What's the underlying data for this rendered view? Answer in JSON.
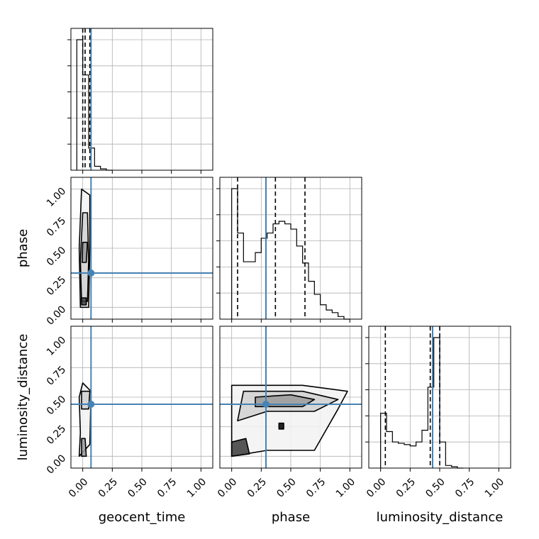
{
  "chart_data": {
    "type": "corner",
    "parameters": [
      "geocent_time",
      "phase",
      "luminosity_distance"
    ],
    "xlabels": [
      "geocent_time",
      "phase",
      "luminosity_distance"
    ],
    "ylabels": [
      "phase",
      "luminosity_distance"
    ],
    "tick_labels": [
      "0.00",
      "0.25",
      "0.50",
      "0.75",
      "1.00"
    ],
    "xlim": [
      -0.1,
      1.1
    ],
    "ylim": [
      -0.1,
      1.1
    ],
    "truths": {
      "geocent_time": 0.07,
      "phase": 0.29,
      "luminosity_distance": 0.44
    },
    "truth_color": "#4682b4",
    "quantiles": {
      "geocent_time": [
        0.0,
        0.02,
        0.06
      ],
      "phase": [
        0.05,
        0.37,
        0.62
      ],
      "luminosity_distance": [
        0.04,
        0.42,
        0.5
      ]
    },
    "histograms": {
      "geocent_time": {
        "bin_edges": [
          -0.05,
          0.0,
          0.05,
          0.1,
          0.15,
          0.2,
          0.25
        ],
        "counts": [
          1.0,
          0.73,
          0.17,
          0.03,
          0.01,
          0.0
        ]
      },
      "phase": {
        "bin_edges": [
          0.0,
          0.05,
          0.1,
          0.15,
          0.2,
          0.25,
          0.3,
          0.35,
          0.4,
          0.45,
          0.5,
          0.55,
          0.6,
          0.65,
          0.7,
          0.75,
          0.8,
          0.85,
          0.9,
          0.95,
          1.0
        ],
        "counts": [
          1.0,
          0.66,
          0.44,
          0.44,
          0.51,
          0.62,
          0.66,
          0.73,
          0.75,
          0.73,
          0.69,
          0.56,
          0.43,
          0.29,
          0.19,
          0.11,
          0.07,
          0.05,
          0.02,
          0.0
        ]
      },
      "luminosity_distance": {
        "bin_edges": [
          0.0,
          0.05,
          0.1,
          0.15,
          0.2,
          0.25,
          0.3,
          0.35,
          0.4,
          0.45,
          0.5,
          0.55,
          0.6,
          0.65,
          0.7
        ],
        "counts": [
          0.42,
          0.28,
          0.2,
          0.19,
          0.18,
          0.17,
          0.2,
          0.29,
          0.62,
          1.0,
          0.2,
          0.02,
          0.01,
          0.0
        ]
      }
    },
    "contours_2d": [
      {
        "x": "geocent_time",
        "y": "phase",
        "levels": [
          [
            [
              -0.02,
              0.0
            ],
            [
              0.05,
              0.0
            ],
            [
              0.06,
              0.5
            ],
            [
              0.06,
              0.95
            ],
            [
              -0.01,
              1.0
            ],
            [
              -0.03,
              0.5
            ]
          ],
          [
            [
              -0.01,
              0.05
            ],
            [
              0.04,
              0.05
            ],
            [
              0.05,
              0.4
            ],
            [
              0.04,
              0.8
            ],
            [
              0.0,
              0.8
            ],
            [
              -0.02,
              0.4
            ]
          ],
          [
            [
              -0.005,
              0.38
            ],
            [
              0.03,
              0.38
            ],
            [
              0.04,
              0.55
            ],
            [
              0.0,
              0.55
            ]
          ],
          [
            [
              -0.01,
              0.02
            ],
            [
              0.03,
              0.02
            ],
            [
              0.03,
              0.08
            ],
            [
              -0.01,
              0.08
            ]
          ]
        ]
      },
      {
        "x": "geocent_time",
        "y": "luminosity_distance",
        "levels": [
          [
            [
              -0.03,
              0.0
            ],
            [
              0.06,
              0.1
            ],
            [
              0.07,
              0.55
            ],
            [
              0.0,
              0.62
            ],
            [
              -0.03,
              0.5
            ],
            [
              -0.02,
              0.2
            ]
          ],
          [
            [
              -0.01,
              0.4
            ],
            [
              0.05,
              0.4
            ],
            [
              0.06,
              0.55
            ],
            [
              -0.01,
              0.55
            ]
          ],
          [
            [
              -0.01,
              0.0
            ],
            [
              0.03,
              0.0
            ],
            [
              0.02,
              0.15
            ],
            [
              -0.01,
              0.15
            ]
          ]
        ]
      },
      {
        "x": "phase",
        "y": "luminosity_distance",
        "levels": [
          [
            [
              0.0,
              0.0
            ],
            [
              0.3,
              0.05
            ],
            [
              0.7,
              0.05
            ],
            [
              0.9,
              0.4
            ],
            [
              0.98,
              0.55
            ],
            [
              0.6,
              0.6
            ],
            [
              0.0,
              0.6
            ]
          ],
          [
            [
              0.05,
              0.3
            ],
            [
              0.3,
              0.38
            ],
            [
              0.7,
              0.38
            ],
            [
              0.9,
              0.48
            ],
            [
              0.6,
              0.55
            ],
            [
              0.1,
              0.55
            ]
          ],
          [
            [
              0.2,
              0.42
            ],
            [
              0.6,
              0.42
            ],
            [
              0.7,
              0.48
            ],
            [
              0.5,
              0.52
            ],
            [
              0.2,
              0.5
            ]
          ],
          [
            [
              0.0,
              0.0
            ],
            [
              0.15,
              0.02
            ],
            [
              0.12,
              0.15
            ],
            [
              0.0,
              0.12
            ]
          ],
          [
            [
              0.4,
              0.23
            ],
            [
              0.44,
              0.23
            ],
            [
              0.44,
              0.28
            ],
            [
              0.4,
              0.28
            ]
          ]
        ]
      }
    ],
    "grid": true
  }
}
